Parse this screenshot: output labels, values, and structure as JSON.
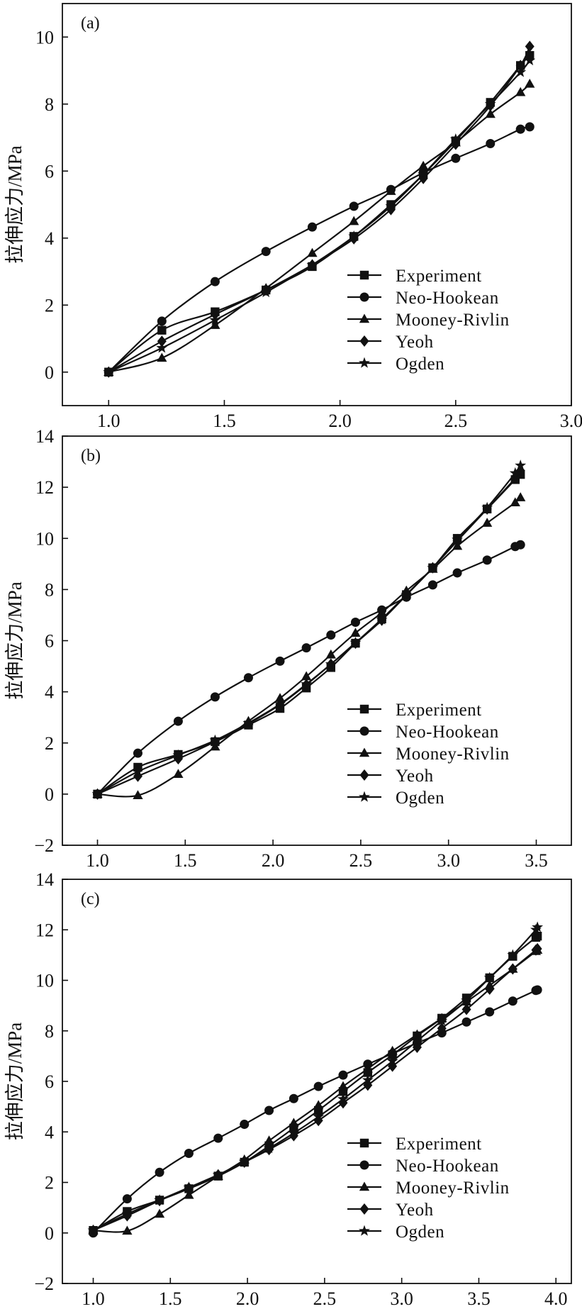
{
  "figure": {
    "marker_color": "#111111",
    "background": "#ffffff"
  },
  "chart_data": [
    {
      "type": "line",
      "panel_label": "(a)",
      "ylabel": "拉伸应力/MPa",
      "xlabel": "",
      "xlim": [
        0.8,
        3.0
      ],
      "ylim": [
        -1,
        11
      ],
      "xticks": [
        "1.0",
        "1.5",
        "2.0",
        "2.5",
        "3.0"
      ],
      "yticks": [
        "0",
        "2",
        "4",
        "6",
        "8",
        "10"
      ],
      "legend_position": "lower-right",
      "series": [
        {
          "name": "Experiment",
          "marker": "square",
          "x": [
            1.0,
            1.23,
            1.46,
            1.68,
            1.88,
            2.06,
            2.22,
            2.36,
            2.5,
            2.65,
            2.78,
            2.82
          ],
          "y": [
            0.0,
            1.25,
            1.8,
            2.45,
            3.15,
            4.05,
            5.0,
            5.9,
            6.9,
            8.05,
            9.15,
            9.45
          ]
        },
        {
          "name": "Neo-Hookean",
          "marker": "circle",
          "x": [
            1.0,
            1.23,
            1.46,
            1.68,
            1.88,
            2.06,
            2.22,
            2.36,
            2.5,
            2.65,
            2.78,
            2.82
          ],
          "y": [
            0.0,
            1.52,
            2.7,
            3.6,
            4.33,
            4.95,
            5.45,
            5.95,
            6.38,
            6.82,
            7.25,
            7.32
          ]
        },
        {
          "name": "Mooney-Rivlin",
          "marker": "triangle",
          "x": [
            1.0,
            1.23,
            1.46,
            1.68,
            1.88,
            2.06,
            2.22,
            2.36,
            2.5,
            2.65,
            2.78,
            2.82
          ],
          "y": [
            0.0,
            0.42,
            1.4,
            2.5,
            3.55,
            4.5,
            5.4,
            6.15,
            6.85,
            7.7,
            8.35,
            8.6
          ]
        },
        {
          "name": "Yeoh",
          "marker": "diamond",
          "x": [
            1.0,
            1.23,
            1.46,
            1.68,
            1.88,
            2.06,
            2.22,
            2.36,
            2.5,
            2.65,
            2.78,
            2.82
          ],
          "y": [
            0.0,
            0.92,
            1.72,
            2.45,
            3.2,
            3.98,
            4.85,
            5.78,
            6.8,
            7.95,
            9.15,
            9.72
          ]
        },
        {
          "name": "Ogden",
          "marker": "star",
          "x": [
            1.0,
            1.23,
            1.46,
            1.68,
            1.88,
            2.06,
            2.22,
            2.36,
            2.5,
            2.65,
            2.78,
            2.82
          ],
          "y": [
            0.0,
            0.72,
            1.55,
            2.38,
            3.2,
            4.05,
            4.95,
            5.9,
            6.95,
            8.0,
            8.95,
            9.3
          ]
        }
      ]
    },
    {
      "type": "line",
      "panel_label": "(b)",
      "ylabel": "拉伸应力/MPa",
      "xlabel": "",
      "xlim": [
        0.8,
        3.7
      ],
      "ylim": [
        -2,
        14
      ],
      "xticks": [
        "1.0",
        "1.5",
        "2.0",
        "2.5",
        "3.0",
        "3.5"
      ],
      "yticks": [
        "−2",
        "0",
        "2",
        "4",
        "6",
        "8",
        "10",
        "12",
        "14"
      ],
      "legend_position": "lower-right",
      "series": [
        {
          "name": "Experiment",
          "marker": "square",
          "x": [
            1.0,
            1.23,
            1.46,
            1.67,
            1.86,
            2.04,
            2.19,
            2.33,
            2.47,
            2.62,
            2.76,
            2.91,
            3.05,
            3.22,
            3.38,
            3.41
          ],
          "y": [
            0.0,
            1.05,
            1.55,
            2.05,
            2.7,
            3.35,
            4.15,
            4.95,
            5.9,
            6.85,
            7.8,
            8.85,
            10.0,
            11.15,
            12.3,
            12.5
          ]
        },
        {
          "name": "Neo-Hookean",
          "marker": "circle",
          "x": [
            1.0,
            1.23,
            1.46,
            1.67,
            1.86,
            2.04,
            2.19,
            2.33,
            2.47,
            2.62,
            2.76,
            2.91,
            3.05,
            3.22,
            3.38,
            3.41
          ],
          "y": [
            0.0,
            1.6,
            2.85,
            3.8,
            4.55,
            5.2,
            5.72,
            6.22,
            6.72,
            7.2,
            7.7,
            8.18,
            8.65,
            9.15,
            9.68,
            9.75
          ]
        },
        {
          "name": "Mooney-Rivlin",
          "marker": "triangle",
          "x": [
            1.0,
            1.23,
            1.46,
            1.67,
            1.86,
            2.04,
            2.19,
            2.33,
            2.47,
            2.62,
            2.76,
            2.91,
            3.05,
            3.22,
            3.38,
            3.41
          ],
          "y": [
            0.0,
            -0.05,
            0.78,
            1.85,
            2.85,
            3.75,
            4.6,
            5.45,
            6.3,
            7.1,
            7.95,
            8.8,
            9.7,
            10.6,
            11.4,
            11.6
          ]
        },
        {
          "name": "Yeoh",
          "marker": "diamond",
          "x": [
            1.0,
            1.23,
            1.46,
            1.67,
            1.86,
            2.04,
            2.19,
            2.33,
            2.47,
            2.62,
            2.76,
            2.91,
            3.05,
            3.22,
            3.38,
            3.41
          ],
          "y": [
            0.0,
            0.7,
            1.38,
            2.05,
            2.75,
            3.5,
            4.28,
            5.08,
            5.9,
            6.8,
            7.78,
            8.85,
            9.9,
            11.15,
            12.35,
            12.65
          ]
        },
        {
          "name": "Ogden",
          "marker": "star",
          "x": [
            1.0,
            1.23,
            1.46,
            1.67,
            1.86,
            2.04,
            2.19,
            2.33,
            2.47,
            2.62,
            2.76,
            2.91,
            3.05,
            3.22,
            3.38,
            3.41
          ],
          "y": [
            0.0,
            0.88,
            1.52,
            2.1,
            2.78,
            3.52,
            4.3,
            5.08,
            5.92,
            6.82,
            7.8,
            8.85,
            9.95,
            11.2,
            12.55,
            12.85
          ]
        }
      ]
    },
    {
      "type": "line",
      "panel_label": "(c)",
      "ylabel": "拉伸应力/MPa",
      "xlabel": "",
      "xlim": [
        0.8,
        4.1
      ],
      "ylim": [
        -2,
        14
      ],
      "xticks": [
        "1.0",
        "1.5",
        "2.0",
        "2.5",
        "3.0",
        "3.5",
        "4.0"
      ],
      "yticks": [
        "−2",
        "0",
        "2",
        "4",
        "6",
        "8",
        "10",
        "12",
        "14"
      ],
      "legend_position": "lower-right",
      "series": [
        {
          "name": "Experiment",
          "marker": "square",
          "x": [
            1.0,
            1.22,
            1.43,
            1.62,
            1.81,
            1.98,
            2.14,
            2.3,
            2.46,
            2.62,
            2.78,
            2.94,
            3.1,
            3.26,
            3.42,
            3.57,
            3.72,
            3.87,
            3.88
          ],
          "y": [
            0.1,
            0.85,
            1.3,
            1.75,
            2.25,
            2.8,
            3.45,
            4.15,
            4.85,
            5.6,
            6.35,
            7.05,
            7.8,
            8.5,
            9.3,
            10.1,
            10.95,
            11.7,
            11.75
          ]
        },
        {
          "name": "Neo-Hookean",
          "marker": "circle",
          "x": [
            1.0,
            1.22,
            1.43,
            1.62,
            1.81,
            1.98,
            2.14,
            2.3,
            2.46,
            2.62,
            2.78,
            2.94,
            3.1,
            3.26,
            3.42,
            3.57,
            3.72,
            3.87,
            3.88
          ],
          "y": [
            0.0,
            1.35,
            2.4,
            3.15,
            3.75,
            4.3,
            4.85,
            5.32,
            5.8,
            6.25,
            6.68,
            7.1,
            7.52,
            7.92,
            8.35,
            8.75,
            9.18,
            9.6,
            9.62
          ]
        },
        {
          "name": "Mooney-Rivlin",
          "marker": "triangle",
          "x": [
            1.0,
            1.22,
            1.43,
            1.62,
            1.81,
            1.98,
            2.14,
            2.3,
            2.46,
            2.62,
            2.78,
            2.94,
            3.1,
            3.26,
            3.42,
            3.57,
            3.72,
            3.87,
            3.88
          ],
          "y": [
            0.1,
            0.08,
            0.75,
            1.5,
            2.25,
            2.9,
            3.65,
            4.35,
            5.05,
            5.8,
            6.5,
            7.2,
            7.85,
            8.5,
            9.15,
            9.8,
            10.45,
            11.15,
            11.2
          ]
        },
        {
          "name": "Yeoh",
          "marker": "diamond",
          "x": [
            1.0,
            1.22,
            1.43,
            1.62,
            1.81,
            1.98,
            2.14,
            2.3,
            2.46,
            2.62,
            2.78,
            2.94,
            3.1,
            3.26,
            3.42,
            3.57,
            3.72,
            3.87,
            3.88
          ],
          "y": [
            0.1,
            0.68,
            1.28,
            1.78,
            2.3,
            2.8,
            3.3,
            3.85,
            4.45,
            5.15,
            5.85,
            6.6,
            7.35,
            8.1,
            8.85,
            9.65,
            10.45,
            11.2,
            11.25
          ]
        },
        {
          "name": "Ogden",
          "marker": "star",
          "x": [
            1.0,
            1.22,
            1.43,
            1.62,
            1.81,
            1.98,
            2.14,
            2.3,
            2.46,
            2.62,
            2.78,
            2.94,
            3.1,
            3.26,
            3.42,
            3.57,
            3.72,
            3.87,
            3.88
          ],
          "y": [
            0.1,
            0.75,
            1.3,
            1.8,
            2.3,
            2.82,
            3.35,
            3.95,
            4.6,
            5.3,
            6.05,
            6.8,
            7.6,
            8.4,
            9.2,
            10.1,
            11.0,
            12.0,
            12.1
          ]
        }
      ]
    }
  ]
}
